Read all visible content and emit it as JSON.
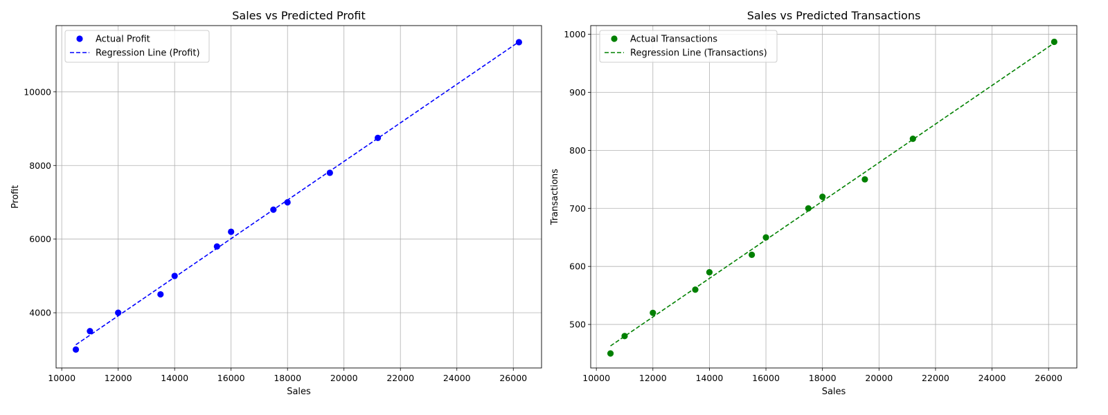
{
  "chart_data": [
    {
      "type": "scatter",
      "title": "Sales vs Predicted Profit",
      "xlabel": "Sales",
      "ylabel": "Profit",
      "xlim": [
        9800,
        27000
      ],
      "ylim": [
        2500,
        11800
      ],
      "xticks": [
        10000,
        12000,
        14000,
        16000,
        18000,
        20000,
        22000,
        24000,
        26000
      ],
      "yticks": [
        4000,
        6000,
        8000,
        10000
      ],
      "grid": true,
      "legend_position": "top-left",
      "color": "#0000ff",
      "series": [
        {
          "name": "Actual Profit",
          "kind": "scatter",
          "points": [
            [
              10500,
              3000
            ],
            [
              11000,
              3500
            ],
            [
              12000,
              4000
            ],
            [
              13500,
              4500
            ],
            [
              14000,
              5000
            ],
            [
              15500,
              5800
            ],
            [
              16000,
              6200
            ],
            [
              17500,
              6800
            ],
            [
              18000,
              7000
            ],
            [
              19500,
              7800
            ],
            [
              21200,
              8750
            ],
            [
              26200,
              11350
            ]
          ]
        },
        {
          "name": "Regression Line (Profit)",
          "kind": "line",
          "style": "dashed",
          "points": [
            [
              10500,
              3130
            ],
            [
              26200,
              11360
            ]
          ]
        }
      ]
    },
    {
      "type": "scatter",
      "title": "Sales vs Predicted Transactions",
      "xlabel": "Sales",
      "ylabel": "Transactions",
      "xlim": [
        9800,
        27000
      ],
      "ylim": [
        425,
        1015
      ],
      "xticks": [
        10000,
        12000,
        14000,
        16000,
        18000,
        20000,
        22000,
        24000,
        26000
      ],
      "yticks": [
        500,
        600,
        700,
        800,
        900,
        1000
      ],
      "grid": true,
      "legend_position": "top-left",
      "color": "#008000",
      "series": [
        {
          "name": "Actual Transactions",
          "kind": "scatter",
          "points": [
            [
              10500,
              450
            ],
            [
              11000,
              480
            ],
            [
              12000,
              520
            ],
            [
              13500,
              560
            ],
            [
              14000,
              590
            ],
            [
              15500,
              620
            ],
            [
              16000,
              650
            ],
            [
              17500,
              700
            ],
            [
              18000,
              720
            ],
            [
              19500,
              750
            ],
            [
              21200,
              820
            ],
            [
              26200,
              987
            ]
          ]
        },
        {
          "name": "Regression Line (Transactions)",
          "kind": "line",
          "style": "dashed",
          "points": [
            [
              10500,
              463
            ],
            [
              26200,
              985
            ]
          ]
        }
      ]
    }
  ]
}
